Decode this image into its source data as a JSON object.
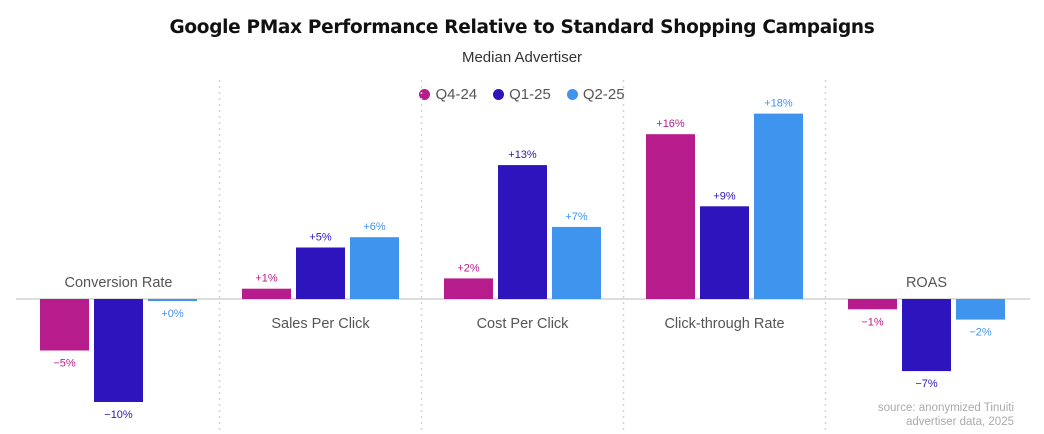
{
  "chart_data": {
    "type": "bar",
    "title": "Google PMax Performance Relative to Standard Shopping Campaigns",
    "subtitle": "Median Advertiser",
    "xlabel": "",
    "ylabel": "",
    "ylim": [
      -12,
      20
    ],
    "grid": false,
    "legend_position": "top-center",
    "categories": [
      "Conversion Rate",
      "Sales Per Click",
      "Cost Per Click",
      "Click-through Rate",
      "ROAS"
    ],
    "series": [
      {
        "name": "Q4-24",
        "color": "#B71C8C",
        "values": [
          -5,
          1,
          2,
          16,
          -1
        ],
        "labels": [
          "−5%",
          "+1%",
          "+2%",
          "+16%",
          "−1%"
        ]
      },
      {
        "name": "Q1-25",
        "color": "#2E14BC",
        "values": [
          -10,
          5,
          13,
          9,
          -7
        ],
        "labels": [
          "−10%",
          "+5%",
          "+13%",
          "+9%",
          "−7%"
        ]
      },
      {
        "name": "Q2-25",
        "color": "#3F94EE",
        "values": [
          0,
          6,
          7,
          18,
          -2
        ],
        "labels": [
          "+0%",
          "+6%",
          "+7%",
          "+18%",
          "−2%"
        ]
      }
    ],
    "source": [
      "source: anonymized Tinuiti",
      "advertiser data, 2025"
    ]
  }
}
